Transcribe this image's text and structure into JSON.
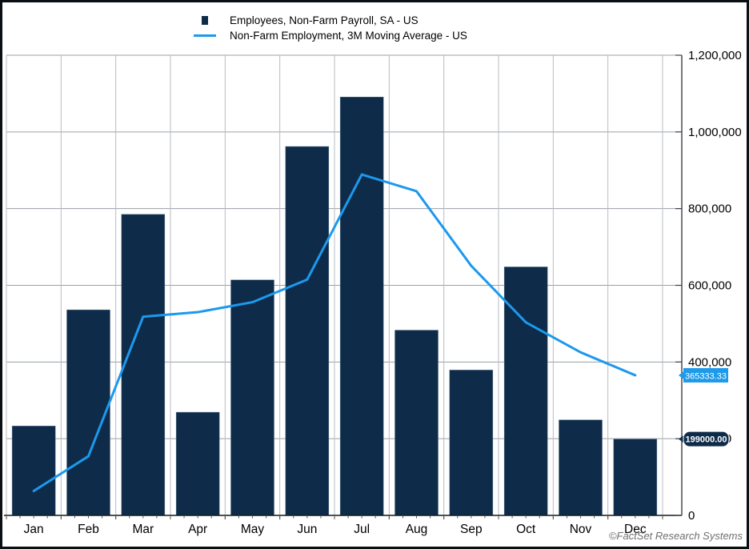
{
  "colors": {
    "bar": "#0E2C49",
    "line": "#1C99EE",
    "grid_horizontal": "#9aa0a6",
    "grid_vertical": "#b7bcc2",
    "axis_right": "#3a4148",
    "axis_bottom": "#14181c",
    "tick": "#555555",
    "text": "#000000",
    "badge_line_bg": "#1E9AEA",
    "badge_bar_bg": "#0E2C49",
    "badge_text": "#ffffff"
  },
  "legend": [
    {
      "label": "Employees, Non-Farm Payroll, SA - US",
      "marker": "square"
    },
    {
      "label": "Non-Farm Employment, 3M Moving Average - US",
      "marker": "line"
    }
  ],
  "chart_data": {
    "type": "bar",
    "categories": [
      "Jan",
      "Feb",
      "Mar",
      "Apr",
      "May",
      "Jun",
      "Jul",
      "Aug",
      "Sep",
      "Oct",
      "Nov",
      "Dec"
    ],
    "series": [
      {
        "name": "Employees, Non-Farm Payroll, SA - US",
        "type": "bar",
        "values": [
          233000,
          536000,
          785000,
          269000,
          614000,
          962000,
          1091000,
          483000,
          379000,
          648000,
          249000,
          199000
        ]
      },
      {
        "name": "Non-Farm Employment, 3M Moving Average - US",
        "type": "line",
        "values": [
          63666.67,
          154333.33,
          518000,
          530000,
          556000,
          615000,
          889000,
          845333.33,
          651000,
          503333.33,
          425333.33,
          365333.33
        ]
      }
    ],
    "title": "",
    "xlabel": "",
    "ylabel": "",
    "ylim": [
      0,
      1200000
    ],
    "ytick_step": 200000,
    "ytick_labels": [
      "0",
      "200,000",
      "400,000",
      "600,000",
      "800,000",
      "1,000,000",
      "1,200,000"
    ],
    "yaxis_side": "right",
    "grid": true,
    "legend_position": "top-left",
    "last_value_labels": {
      "line_badge": "365333.33",
      "bar_badge": "199000.00"
    }
  },
  "footer": {
    "attribution": "©FactSet Research Systems"
  }
}
